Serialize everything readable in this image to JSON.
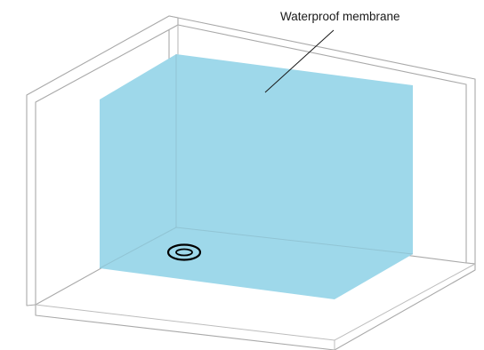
{
  "diagram": {
    "label": "Waterproof membrane"
  },
  "colors": {
    "membrane": "#9ed8ea",
    "wall_stroke": "#a9a9a9",
    "wall_fill": "#ffffff",
    "drain": "#000000",
    "text": "#1a1a1a"
  },
  "icons": {
    "drain": "floor-drain-icon"
  }
}
